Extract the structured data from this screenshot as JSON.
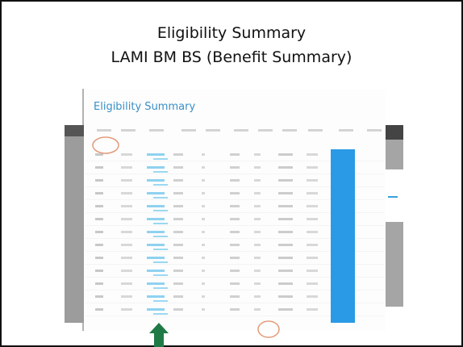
{
  "slide": {
    "title": "Eligibility Summary",
    "subtitle": "LAMI BM BS (Benefit Summary)"
  },
  "screenshot": {
    "heading": "Eligibility Summary"
  }
}
